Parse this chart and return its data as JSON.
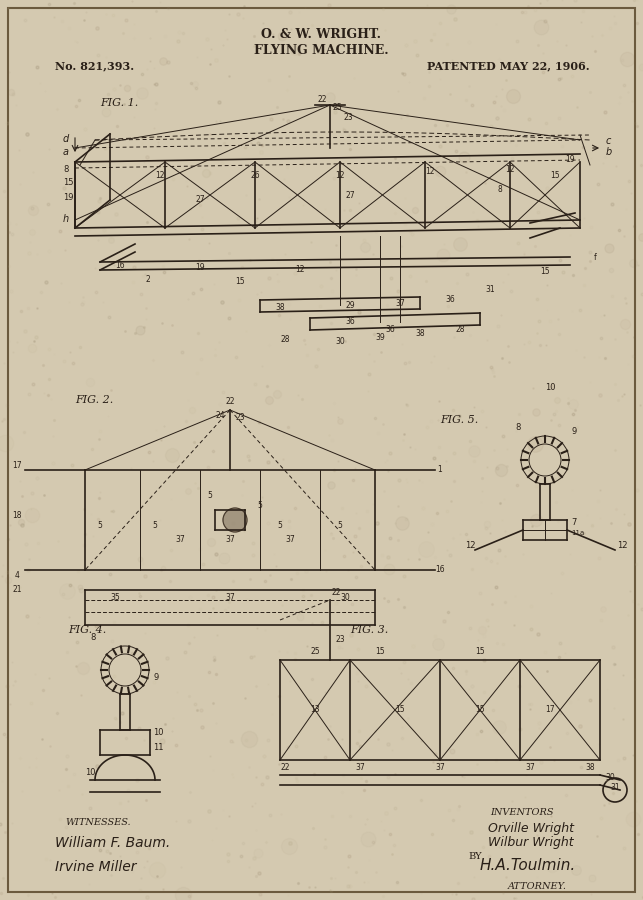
{
  "bg_color": "#d4c9b0",
  "line_color": "#2a2018",
  "title_line1": "O. & W. WRIGHT.",
  "title_line2": "FLYING MACHINE.",
  "patent_no": "No. 821,393.",
  "patent_date": "PATENTED MAY 22, 1906.",
  "fig1_label": "FIG. 1.",
  "fig2_label": "FIG. 2.",
  "fig3_label": "FIG. 3.",
  "fig4_label": "FIG. 4.",
  "fig5_label": "FIG. 5.",
  "witnesses_label": "WITNESSES.",
  "witness1": "William F. Baum.",
  "witness2": "Irvine Miller",
  "inventors_label": "INVENTORS",
  "inventor1": "Orville Wright",
  "inventor2": "Wilbur Wright",
  "by_label": "BY",
  "attorney_sig": "H.A.Toulmin.",
  "attorney_label": "ATTORNEY.",
  "figsize": [
    6.43,
    9.0
  ],
  "dpi": 100
}
